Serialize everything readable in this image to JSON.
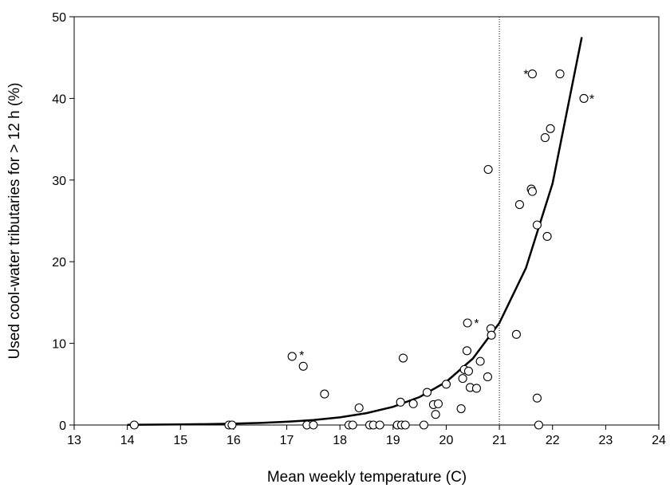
{
  "chart_data": {
    "type": "scatter",
    "x_label": "Mean weekly temperature (C)",
    "y_label": "Used cool-water tributaries for > 12 h (%)",
    "xlim": [
      13,
      24
    ],
    "ylim": [
      0,
      50
    ],
    "xticks": [
      13,
      14,
      15,
      16,
      17,
      18,
      19,
      20,
      21,
      22,
      23,
      24
    ],
    "yticks": [
      0,
      10,
      20,
      30,
      40,
      50
    ],
    "vline": 21,
    "points": {
      "x": [
        14.13,
        15.91,
        15.97,
        17.1,
        17.31,
        17.38,
        17.5,
        17.71,
        18.17,
        18.24,
        18.36,
        18.56,
        18.63,
        18.75,
        19.08,
        19.16,
        19.14,
        19.19,
        19.23,
        19.38,
        19.58,
        19.64,
        19.76,
        19.8,
        19.85,
        20.0,
        20.28,
        20.31,
        20.34,
        20.39,
        20.4,
        20.42,
        20.45,
        20.57,
        20.64,
        20.79,
        20.78,
        20.84,
        20.85,
        21.32,
        21.38,
        21.6,
        21.62,
        21.62,
        21.71,
        21.71,
        21.74,
        21.86,
        21.9,
        21.96,
        22.14,
        22.59
      ],
      "y": [
        0,
        0,
        0,
        8.4,
        7.2,
        0,
        0,
        3.8,
        0,
        0,
        2.1,
        0,
        0,
        0,
        0,
        0,
        2.8,
        8.2,
        0,
        2.6,
        0,
        4.0,
        2.5,
        1.3,
        2.6,
        5.0,
        2.0,
        5.7,
        6.8,
        9.1,
        12.5,
        6.6,
        4.6,
        4.5,
        7.8,
        31.3,
        5.9,
        11.8,
        11.0,
        11.1,
        27.0,
        28.9,
        28.6,
        43.0,
        24.5,
        3.3,
        0,
        35.2,
        23.1,
        36.3,
        43.0,
        40.0
      ],
      "color": "#000000"
    },
    "fit": {
      "x": [
        14,
        14.5,
        15,
        15.5,
        16,
        16.5,
        17,
        17.5,
        18,
        18.5,
        19,
        19.5,
        20,
        20.5,
        21,
        21.5,
        22,
        22.55
      ],
      "y": [
        0.03,
        0.05,
        0.07,
        0.11,
        0.17,
        0.26,
        0.4,
        0.61,
        0.94,
        1.45,
        2.23,
        3.43,
        5.29,
        8.13,
        12.5,
        19.23,
        29.57,
        47.5
      ],
      "color": "#000000"
    },
    "annotations": [
      {
        "text": "*",
        "x": 17.28,
        "y": 8.8
      },
      {
        "text": "*",
        "x": 20.57,
        "y": 12.7
      },
      {
        "text": "*",
        "x": 21.5,
        "y": 43.2
      },
      {
        "text": "*",
        "x": 22.74,
        "y": 40.2
      }
    ]
  }
}
